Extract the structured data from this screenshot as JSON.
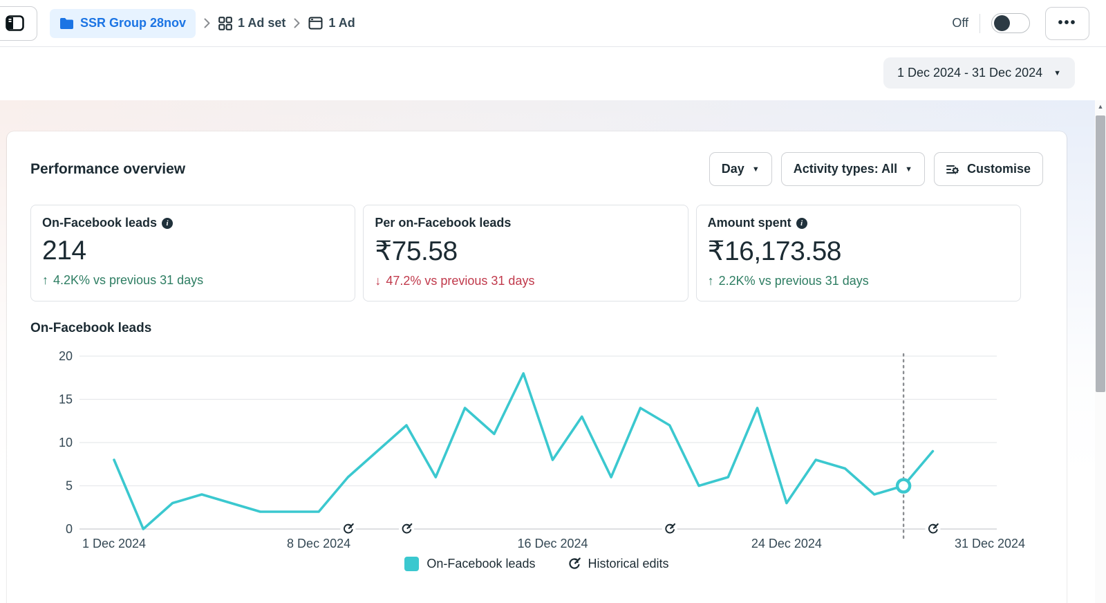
{
  "topbar": {
    "breadcrumb": {
      "campaign": "SSR Group 28nov",
      "adset": "1 Ad set",
      "ad": "1 Ad"
    },
    "off_label": "Off",
    "more_label": "•••"
  },
  "date_range": {
    "label": "1 Dec 2024 - 31 Dec 2024"
  },
  "icons": {
    "caret_down": "▼",
    "scroll_up_arrow": "▲"
  },
  "panel": {
    "title": "Performance overview",
    "controls": {
      "granularity": "Day",
      "activity": "Activity types: All",
      "customise": "Customise"
    },
    "metrics": [
      {
        "label": "On-Facebook leads",
        "has_info": true,
        "value": "214",
        "delta_arrow": "↑",
        "delta": "4.2K% vs previous 31 days",
        "direction": "up",
        "color": "#2d7d62"
      },
      {
        "label": "Per on-Facebook leads",
        "has_info": false,
        "value": "₹75.58",
        "delta_arrow": "↓",
        "delta": "47.2% vs previous 31 days",
        "direction": "down",
        "color": "#c0394b"
      },
      {
        "label": "Amount spent",
        "has_info": true,
        "value": "₹16,173.58",
        "delta_arrow": "↑",
        "delta": "2.2K% vs previous 31 days",
        "direction": "up",
        "color": "#2d7d62"
      }
    ],
    "chart_heading": "On-Facebook leads"
  },
  "chart_data": {
    "type": "line",
    "title": "On-Facebook leads",
    "x_unit": "day of December 2024",
    "days": [
      1,
      2,
      3,
      4,
      5,
      6,
      7,
      8,
      9,
      10,
      11,
      12,
      13,
      14,
      15,
      16,
      17,
      18,
      19,
      20,
      21,
      22,
      23,
      24,
      25,
      26,
      27,
      28,
      29
    ],
    "values": [
      8,
      0,
      3,
      4,
      3,
      2,
      2,
      2,
      6,
      9,
      12,
      6,
      14,
      11,
      18,
      8,
      13,
      6,
      14,
      12,
      5,
      6,
      14,
      3,
      8,
      7,
      4,
      5,
      9
    ],
    "ylim": [
      0,
      20
    ],
    "yticks": [
      0,
      5,
      10,
      15,
      20
    ],
    "xticks": [
      {
        "day": 1,
        "label": "1 Dec 2024"
      },
      {
        "day": 8,
        "label": "8 Dec 2024"
      },
      {
        "day": 16,
        "label": "16 Dec 2024"
      },
      {
        "day": 24,
        "label": "24 Dec 2024"
      },
      {
        "day": 31,
        "label": "31 Dec 2024"
      }
    ],
    "grid": true,
    "line_color": "#3bc8cf",
    "grid_color": "#e7e9ec",
    "axis_line_color": "#c9ccd1",
    "tick_text_color": "#344854",
    "dotted_marker_color": "#8a8d91",
    "highlight_point": {
      "day": 28,
      "value": 5
    },
    "historical_edit_days": [
      9,
      11,
      20,
      29
    ],
    "legend": [
      "On-Facebook leads",
      "Historical edits"
    ]
  }
}
